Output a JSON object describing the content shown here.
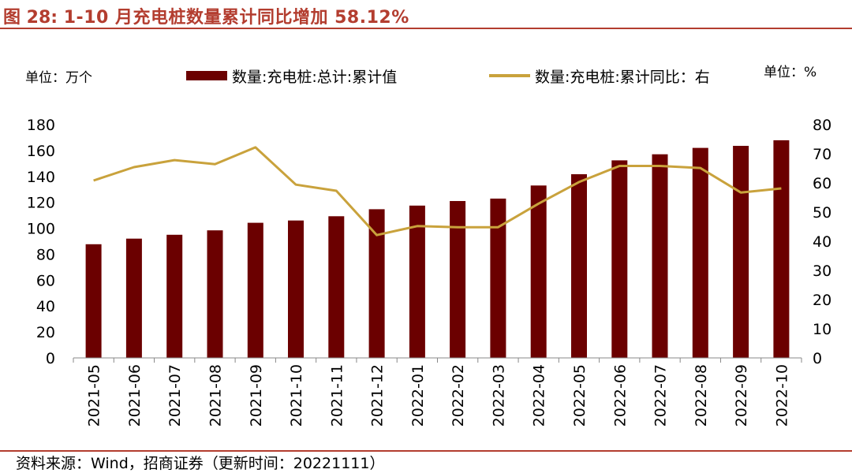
{
  "figure": {
    "title_prefix": "图 28:",
    "title_text": "1-10 月充电桩数量累计同比增加 58.12%",
    "source": "资料来源：Wind，招商证券（更新时间：20221111）"
  },
  "chart_data": {
    "type": "bar",
    "left_unit": "单位：万个",
    "right_unit": "单位：%",
    "categories": [
      "2021-05",
      "2021-06",
      "2021-07",
      "2021-08",
      "2021-09",
      "2021-10",
      "2021-11",
      "2021-12",
      "2022-01",
      "2022-02",
      "2022-03",
      "2022-04",
      "2022-05",
      "2022-06",
      "2022-07",
      "2022-08",
      "2022-09",
      "2022-10"
    ],
    "series": [
      {
        "name": "数量:充电桩:总计:累计值",
        "type": "bar",
        "axis": "left",
        "color": "#6b0000",
        "values": [
          87.7,
          92.0,
          95.0,
          98.4,
          104.2,
          106.0,
          109.3,
          114.7,
          117.5,
          121.0,
          122.9,
          133.0,
          141.7,
          152.4,
          157.1,
          162.0,
          163.6,
          167.9
        ]
      },
      {
        "name": "数量:充电桩:累计同比：右",
        "type": "line",
        "axis": "right",
        "color": "#c9a23c",
        "values": [
          60.8,
          65.4,
          67.8,
          66.4,
          72.2,
          59.4,
          57.3,
          42.1,
          45.2,
          44.8,
          44.8,
          52.9,
          60.3,
          65.8,
          65.8,
          65.1,
          56.7,
          58.1
        ]
      }
    ],
    "y_left": {
      "min": 0,
      "max": 180,
      "step": 20,
      "ticks": [
        "0",
        "20",
        "40",
        "60",
        "80",
        "100",
        "120",
        "140",
        "160",
        "180"
      ]
    },
    "y_right": {
      "min": 0,
      "max": 80,
      "step": 10,
      "ticks": [
        "0",
        "10",
        "20",
        "30",
        "40",
        "50",
        "60",
        "70",
        "80"
      ]
    },
    "legend_position": "top",
    "grid": false
  }
}
